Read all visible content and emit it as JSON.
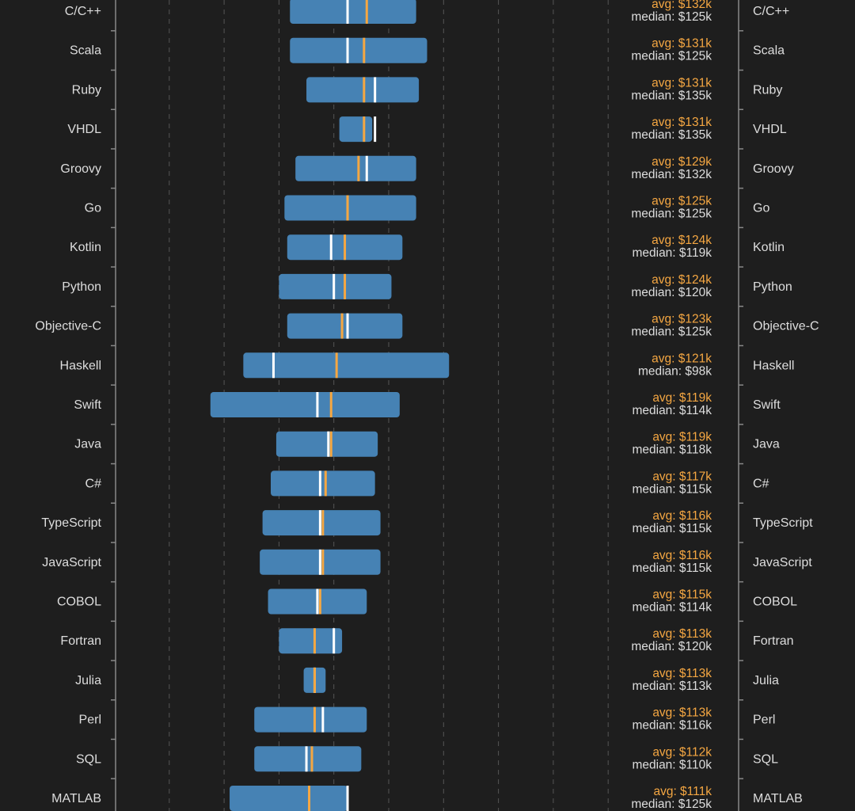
{
  "chart_data": {
    "type": "range-bar",
    "grid": true,
    "xlim": [
      0,
      300
    ],
    "gridlines_k": [
      60,
      80,
      100,
      120,
      140,
      160,
      180,
      200,
      220
    ],
    "colors": {
      "background": "#1e1e1e",
      "bar": "#4682b4",
      "avg": "#f5a742",
      "median": "#ffffff",
      "text": "#dddddd",
      "grid": "#555555"
    },
    "avg_prefix": "avg: $",
    "median_prefix": "median: $",
    "unit_suffix": "k",
    "rows": [
      {
        "name": "C/C++",
        "low": 104,
        "high": 150,
        "avg": 132,
        "median": 125
      },
      {
        "name": "Scala",
        "low": 104,
        "high": 154,
        "avg": 131,
        "median": 125
      },
      {
        "name": "Ruby",
        "low": 110,
        "high": 151,
        "avg": 131,
        "median": 135
      },
      {
        "name": "VHDL",
        "low": 122,
        "high": 134,
        "avg": 131,
        "median": 135
      },
      {
        "name": "Groovy",
        "low": 106,
        "high": 150,
        "avg": 129,
        "median": 132
      },
      {
        "name": "Go",
        "low": 102,
        "high": 150,
        "avg": 125,
        "median": 125
      },
      {
        "name": "Kotlin",
        "low": 103,
        "high": 145,
        "avg": 124,
        "median": 119
      },
      {
        "name": "Python",
        "low": 100,
        "high": 141,
        "avg": 124,
        "median": 120
      },
      {
        "name": "Objective-C",
        "low": 103,
        "high": 145,
        "avg": 123,
        "median": 125
      },
      {
        "name": "Haskell",
        "low": 87,
        "high": 162,
        "avg": 121,
        "median": 98
      },
      {
        "name": "Swift",
        "low": 75,
        "high": 144,
        "avg": 119,
        "median": 114
      },
      {
        "name": "Java",
        "low": 99,
        "high": 136,
        "avg": 119,
        "median": 118
      },
      {
        "name": "C#",
        "low": 97,
        "high": 135,
        "avg": 117,
        "median": 115
      },
      {
        "name": "TypeScript",
        "low": 94,
        "high": 137,
        "avg": 116,
        "median": 115
      },
      {
        "name": "JavaScript",
        "low": 93,
        "high": 137,
        "avg": 116,
        "median": 115
      },
      {
        "name": "COBOL",
        "low": 96,
        "high": 132,
        "avg": 115,
        "median": 114
      },
      {
        "name": "Fortran",
        "low": 100,
        "high": 123,
        "avg": 113,
        "median": 120
      },
      {
        "name": "Julia",
        "low": 109,
        "high": 117,
        "avg": 113,
        "median": 113
      },
      {
        "name": "Perl",
        "low": 91,
        "high": 132,
        "avg": 113,
        "median": 116
      },
      {
        "name": "SQL",
        "low": 91,
        "high": 130,
        "avg": 112,
        "median": 110
      },
      {
        "name": "MATLAB",
        "low": 82,
        "high": 125,
        "avg": 111,
        "median": 125
      }
    ]
  }
}
